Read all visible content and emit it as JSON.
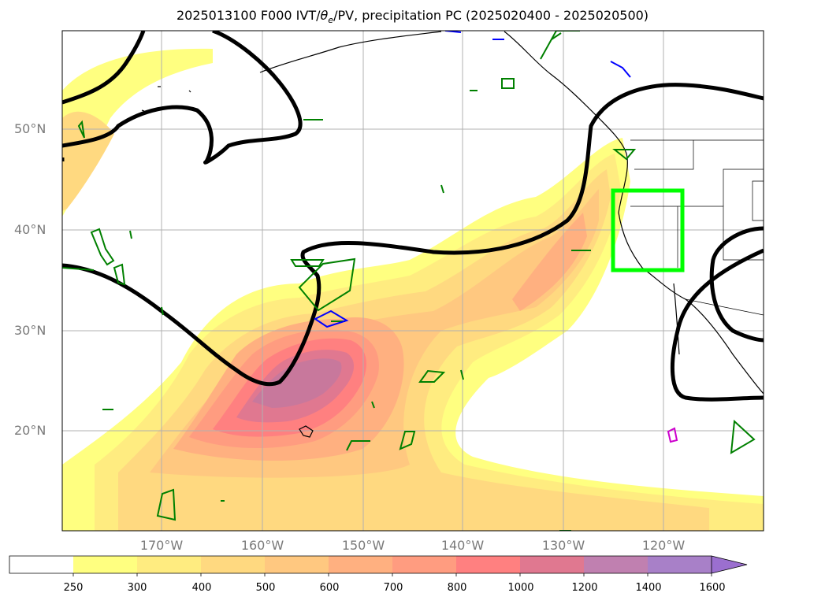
{
  "title": {
    "prefix": "2025013100 F000 IVT/",
    "theta": "θ",
    "theta_sub": "e",
    "suffix": "/PV, precipitation PC (2025020400 - 2025020500)"
  },
  "map": {
    "lat_labels": [
      "50°N",
      "40°N",
      "30°N",
      "20°N"
    ],
    "lon_labels": [
      "170°W",
      "160°W",
      "150°W",
      "140°W",
      "130°W",
      "120°W"
    ],
    "box_color": "#00ff00",
    "contour_color": "#000000",
    "pv_colors": [
      "#008000",
      "#0000ff",
      "#cc00cc"
    ]
  },
  "colorbar": {
    "levels": [
      "250",
      "300",
      "400",
      "500",
      "600",
      "700",
      "800",
      "1000",
      "1200",
      "1400",
      "1600"
    ],
    "colors": [
      "#ffffff",
      "#ffff80",
      "#ffec80",
      "#ffd980",
      "#ffc880",
      "#ffb080",
      "#ff9c80",
      "#ff8080",
      "#e07890",
      "#c080b0",
      "#a880c8"
    ],
    "extend_color": "#9b6fcf"
  }
}
